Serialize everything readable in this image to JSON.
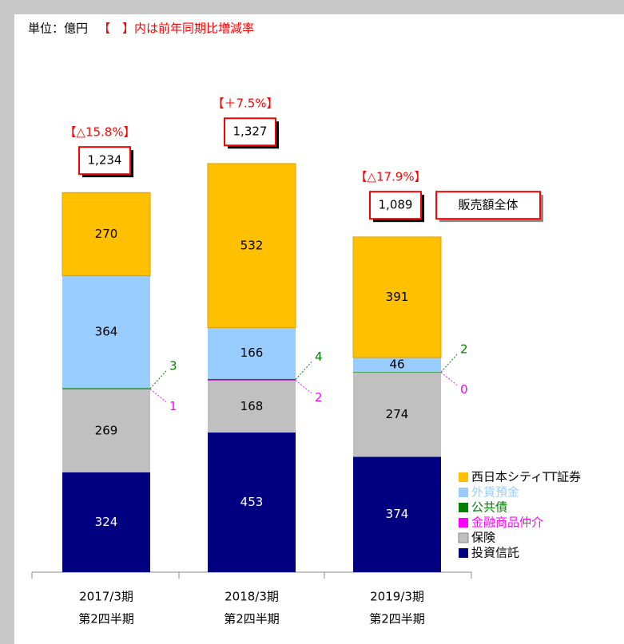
{
  "chart_data": {
    "type": "stacked_bar",
    "unit_label": "単位：億円",
    "note": "【　】内は前年同期比増減率",
    "total_label": "販売額全体",
    "categories": [
      [
        "2017/3期",
        "第2四半期"
      ],
      [
        "2018/3期",
        "第2四半期"
      ],
      [
        "2019/3期",
        "第2四半期"
      ]
    ],
    "series": [
      {
        "name": "投資信託",
        "color": "#000080",
        "values": [
          324,
          453,
          374
        ]
      },
      {
        "name": "保険",
        "color": "#c0c0c0",
        "values": [
          269,
          168,
          274
        ]
      },
      {
        "name": "金融商品仲介",
        "color": "#ff00ff",
        "values": [
          1,
          2,
          0
        ]
      },
      {
        "name": "公共債",
        "color": "#008000",
        "values": [
          3,
          4,
          2
        ]
      },
      {
        "name": "外貨預金",
        "color": "#99ccff",
        "values": [
          364,
          166,
          46
        ]
      },
      {
        "name": "西日本シティTT証券",
        "color": "#ffc000",
        "values": [
          270,
          532,
          391
        ]
      }
    ],
    "totals": [
      1234,
      1327,
      1089
    ],
    "totals_labels": [
      "1,234",
      "1,327",
      "1,089"
    ],
    "changes": [
      "【△15.8%】",
      "【＋7.5%】",
      "【△17.9%】"
    ],
    "ylim": [
      0,
      1400
    ]
  }
}
